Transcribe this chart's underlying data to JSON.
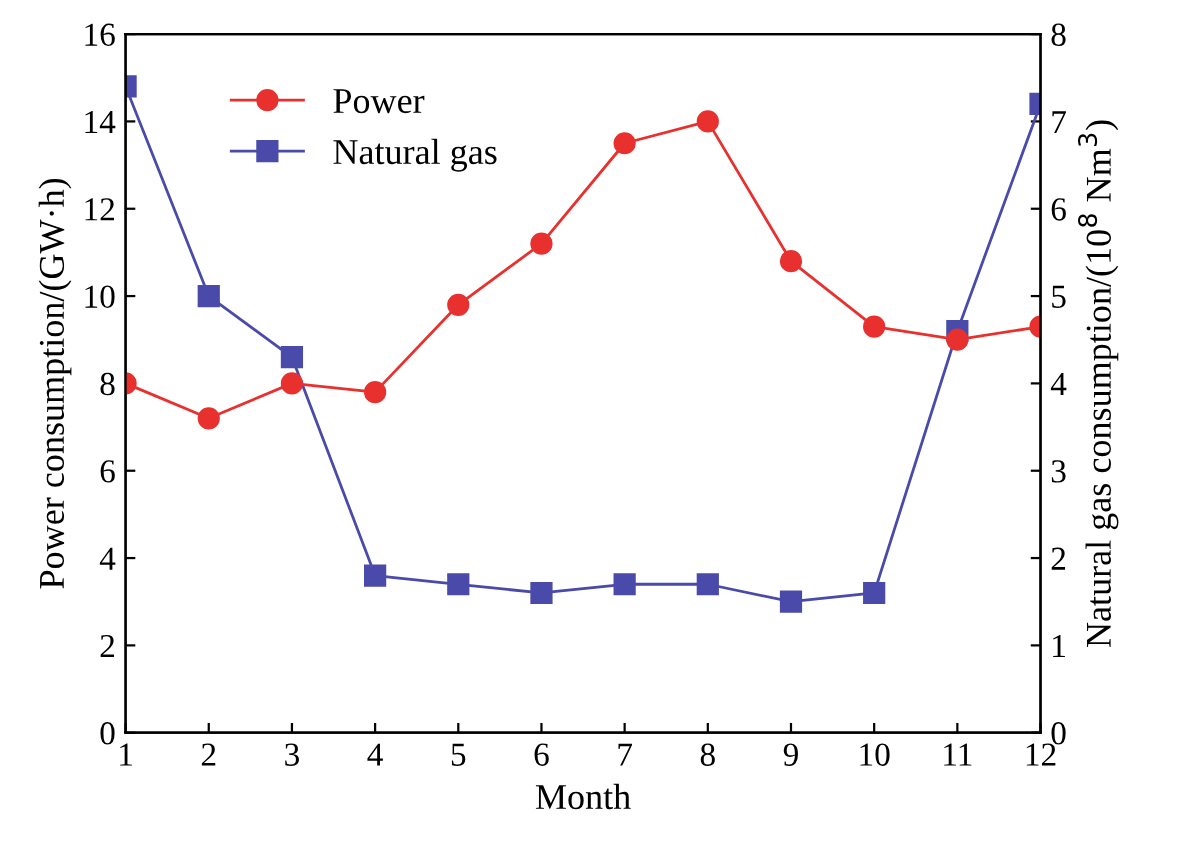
{
  "chart_data": {
    "type": "line",
    "xlabel": "Month",
    "ylabel": "Power consumption/(GW·h)",
    "y2label": "Natural gas consumption/(10$^{8}$ Nm$^{3}$)",
    "x": [
      1,
      2,
      3,
      4,
      5,
      6,
      7,
      8,
      9,
      10,
      11,
      12
    ],
    "xlim": [
      1,
      12
    ],
    "xticks": [
      1,
      2,
      3,
      4,
      5,
      6,
      7,
      8,
      9,
      10,
      11,
      12
    ],
    "ylim": [
      0,
      16
    ],
    "yticks": [
      0,
      2,
      4,
      6,
      8,
      10,
      12,
      14,
      16
    ],
    "y2lim": [
      0,
      8
    ],
    "y2ticks": [
      0,
      1,
      2,
      3,
      4,
      5,
      6,
      7,
      8
    ],
    "legend": "top left",
    "grid": false,
    "series": [
      {
        "name": "Power",
        "color": "#e8312f",
        "marker": "circle",
        "values": [
          8.0,
          7.2,
          8.0,
          7.8,
          9.8,
          11.2,
          13.5,
          14.0,
          10.8,
          9.3,
          9.0,
          9.3
        ]
      },
      {
        "name": "Natural gas",
        "color": "#4a4aaa",
        "marker": "square",
        "axis": "y2",
        "values": [
          7.4,
          5.0,
          4.3,
          1.8,
          1.7,
          1.6,
          1.7,
          1.7,
          1.5,
          1.6,
          4.6,
          7.2
        ]
      }
    ]
  }
}
